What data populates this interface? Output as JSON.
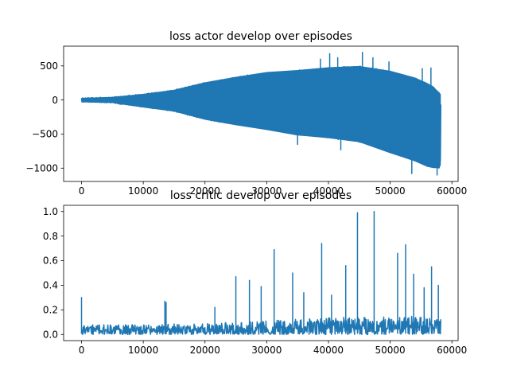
{
  "chart_data": [
    {
      "type": "line",
      "title": "loss actor develop over episodes",
      "xlabel": "",
      "ylabel": "",
      "xlim": [
        -2900,
        61000
      ],
      "ylim": [
        -1195,
        790
      ],
      "x_ticks": [
        0,
        10000,
        20000,
        30000,
        40000,
        50000,
        60000
      ],
      "y_ticks": [
        -1000,
        -500,
        0,
        500
      ],
      "grid": false,
      "legend": "none",
      "series": [
        {
          "color": "#1f77b4",
          "x_max": 58200,
          "envelope": {
            "x": [
              0,
              5000,
              10000,
              15000,
              20000,
              25000,
              30000,
              35000,
              40000,
              45000,
              50000,
              54000,
              56000,
              57000,
              57500,
              58000,
              58200
            ],
            "upper": [
              30,
              45,
              90,
              150,
              260,
              340,
              410,
              440,
              480,
              500,
              430,
              330,
              250,
              200,
              150,
              110,
              80
            ],
            "lower": [
              -30,
              -45,
              -110,
              -170,
              -290,
              -370,
              -440,
              -520,
              -560,
              -620,
              -780,
              -900,
              -980,
              -1000,
              -1000,
              -1000,
              -950
            ]
          },
          "spikes": [
            {
              "x": 38700,
              "y": 600
            },
            {
              "x": 40200,
              "y": 680
            },
            {
              "x": 41500,
              "y": 620
            },
            {
              "x": 45500,
              "y": 700
            },
            {
              "x": 47200,
              "y": 620
            },
            {
              "x": 49800,
              "y": 560
            },
            {
              "x": 55200,
              "y": 460
            },
            {
              "x": 56600,
              "y": 470
            },
            {
              "x": 57600,
              "y": -1100
            },
            {
              "x": 53500,
              "y": -1080
            },
            {
              "x": 35000,
              "y": -650
            },
            {
              "x": 42000,
              "y": -730
            }
          ]
        }
      ]
    },
    {
      "type": "line",
      "title": "loss critic develop over episodes",
      "xlabel": "",
      "ylabel": "",
      "xlim": [
        -2900,
        61000
      ],
      "ylim": [
        -0.05,
        1.05
      ],
      "x_ticks": [
        0,
        10000,
        20000,
        30000,
        40000,
        50000,
        60000
      ],
      "y_ticks": [
        0.0,
        0.2,
        0.4,
        0.6,
        0.8,
        1.0
      ],
      "grid": false,
      "legend": "none",
      "series": [
        {
          "color": "#1f77b4",
          "x_max": 58200,
          "baseline": {
            "x": [
              0,
              10000,
              20000,
              30000,
              40000,
              50000,
              58200
            ],
            "upper": [
              0.08,
              0.08,
              0.09,
              0.11,
              0.14,
              0.16,
              0.13
            ],
            "lower": [
              0.0,
              0.0,
              0.0,
              0.0,
              0.0,
              0.0,
              0.0
            ]
          },
          "spikes": [
            {
              "x": 0,
              "y": 0.3
            },
            {
              "x": 13500,
              "y": 0.27
            },
            {
              "x": 13700,
              "y": 0.26
            },
            {
              "x": 21600,
              "y": 0.22
            },
            {
              "x": 25000,
              "y": 0.47
            },
            {
              "x": 27200,
              "y": 0.44
            },
            {
              "x": 29100,
              "y": 0.39
            },
            {
              "x": 31200,
              "y": 0.69
            },
            {
              "x": 34200,
              "y": 0.5
            },
            {
              "x": 36000,
              "y": 0.34
            },
            {
              "x": 38900,
              "y": 0.74
            },
            {
              "x": 40500,
              "y": 0.32
            },
            {
              "x": 42800,
              "y": 0.56
            },
            {
              "x": 44700,
              "y": 0.99
            },
            {
              "x": 47400,
              "y": 1.0
            },
            {
              "x": 51200,
              "y": 0.66
            },
            {
              "x": 52500,
              "y": 0.73
            },
            {
              "x": 53800,
              "y": 0.49
            },
            {
              "x": 55500,
              "y": 0.38
            },
            {
              "x": 56700,
              "y": 0.55
            },
            {
              "x": 57800,
              "y": 0.4
            }
          ]
        }
      ]
    }
  ]
}
